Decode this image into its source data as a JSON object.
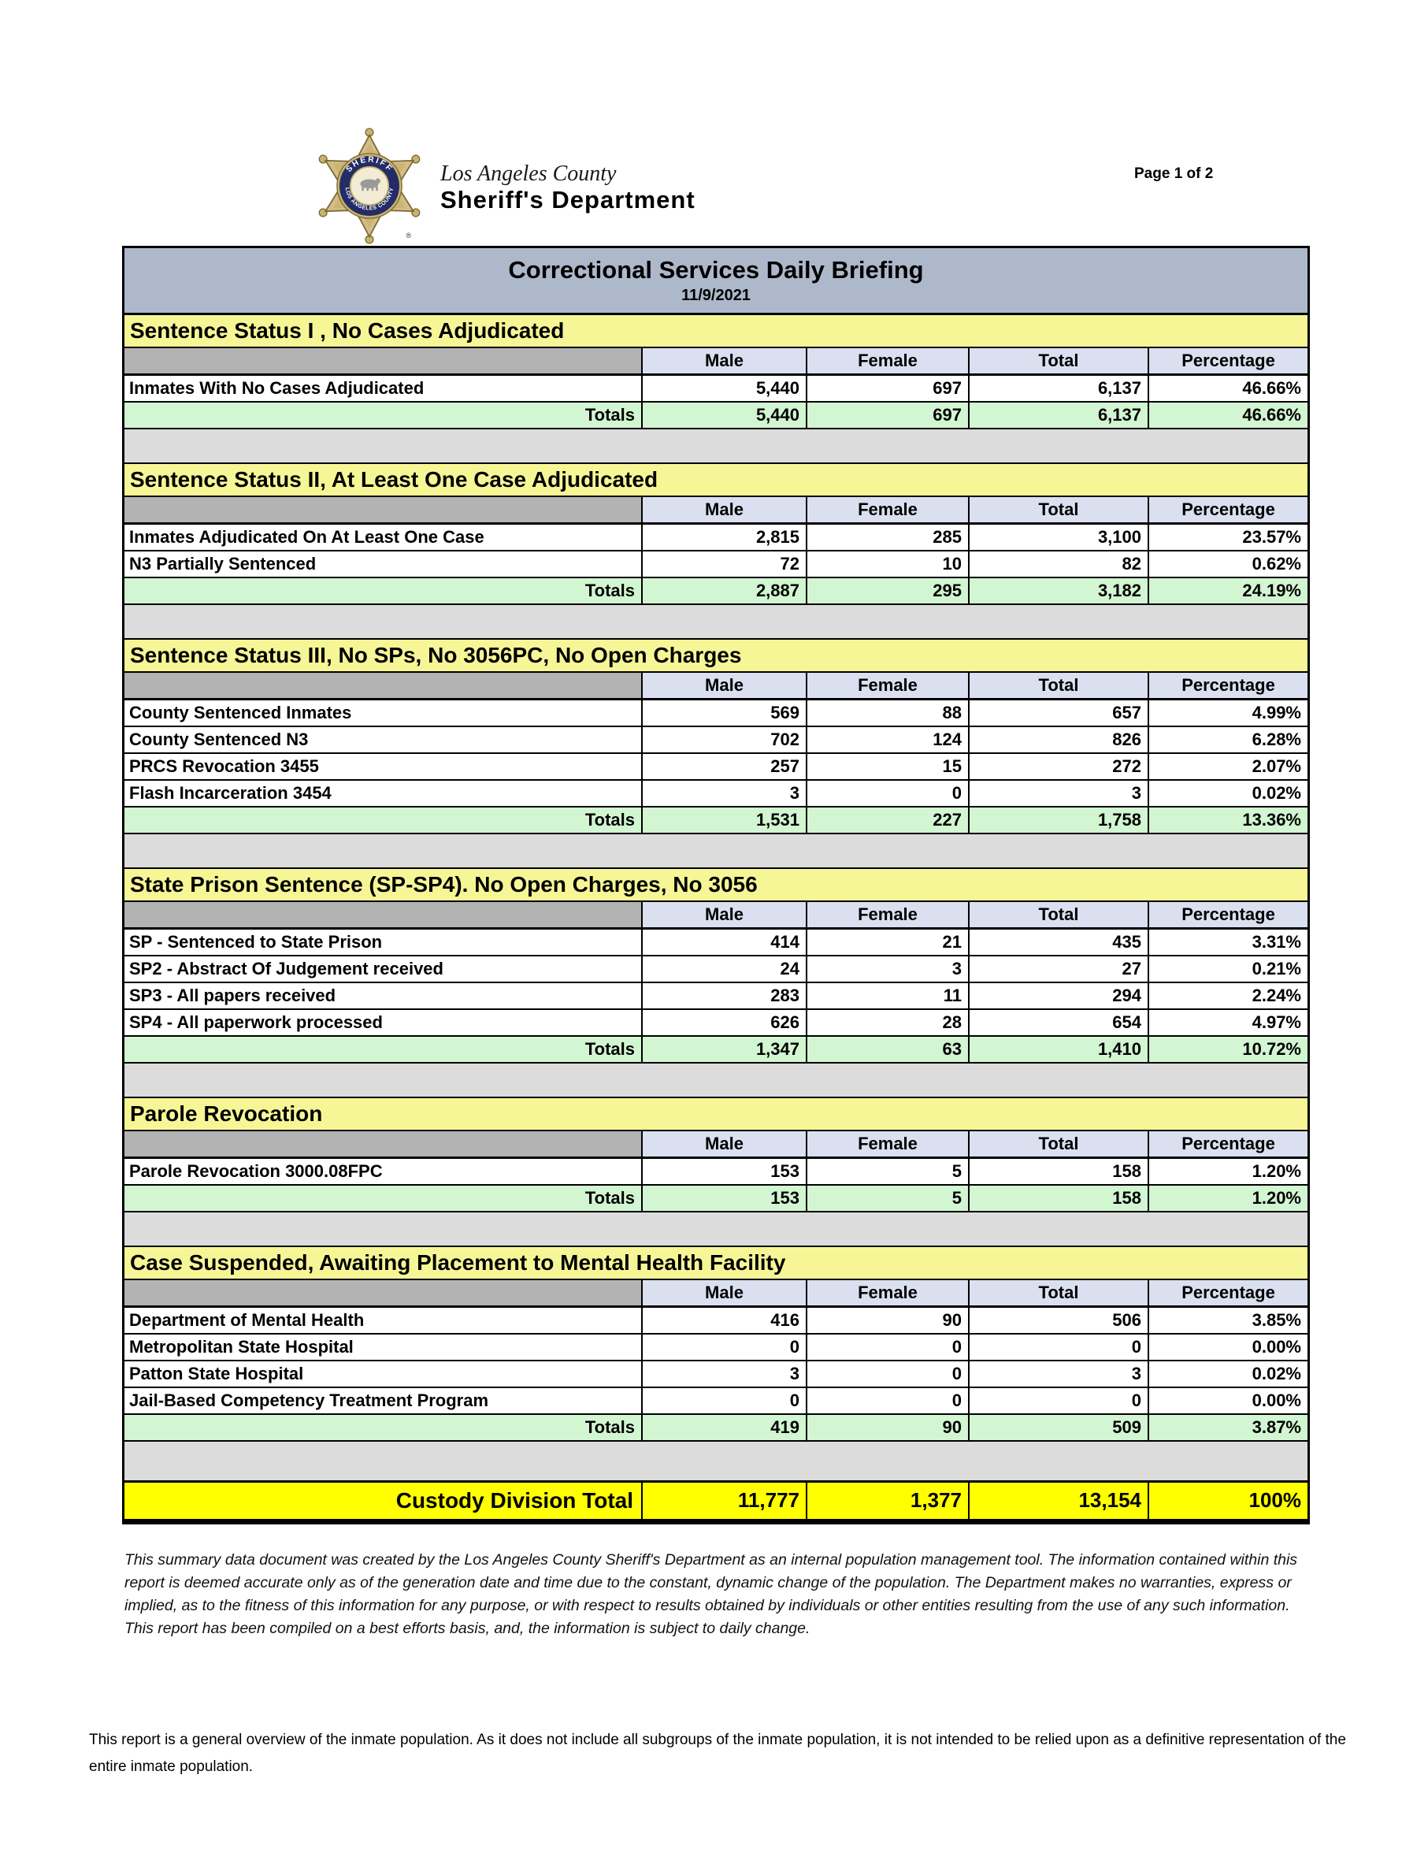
{
  "page": {
    "page_indicator": "Page 1 of 2",
    "logo": {
      "agency_line1": "Los Angeles County",
      "agency_line2": "Sheriff's Department",
      "badge_top_text": "SHERIFF",
      "badge_bottom_text": "LOS ANGELES COUNTY",
      "registered_mark": "®"
    }
  },
  "report": {
    "title": "Correctional Services Daily Briefing",
    "date": "11/9/2021"
  },
  "table": {
    "columns": [
      "Male",
      "Female",
      "Total",
      "Percentage"
    ],
    "totals_label": "Totals",
    "sections": [
      {
        "header": "Sentence Status I , No Cases Adjudicated",
        "rows": [
          {
            "label": "Inmates With No Cases Adjudicated",
            "male": "5,440",
            "female": "697",
            "total": "6,137",
            "percentage": "46.66%"
          }
        ],
        "totals": {
          "male": "5,440",
          "female": "697",
          "total": "6,137",
          "percentage": "46.66%"
        }
      },
      {
        "header": "Sentence Status II, At Least One Case Adjudicated",
        "rows": [
          {
            "label": "Inmates Adjudicated On At Least One Case",
            "male": "2,815",
            "female": "285",
            "total": "3,100",
            "percentage": "23.57%"
          },
          {
            "label": "N3 Partially Sentenced",
            "male": "72",
            "female": "10",
            "total": "82",
            "percentage": "0.62%"
          }
        ],
        "totals": {
          "male": "2,887",
          "female": "295",
          "total": "3,182",
          "percentage": "24.19%"
        }
      },
      {
        "header": "Sentence Status III, No SPs, No 3056PC, No Open Charges",
        "rows": [
          {
            "label": "County Sentenced Inmates",
            "male": "569",
            "female": "88",
            "total": "657",
            "percentage": "4.99%"
          },
          {
            "label": "County Sentenced N3",
            "male": "702",
            "female": "124",
            "total": "826",
            "percentage": "6.28%"
          },
          {
            "label": "PRCS Revocation 3455",
            "male": "257",
            "female": "15",
            "total": "272",
            "percentage": "2.07%"
          },
          {
            "label": "Flash Incarceration 3454",
            "male": "3",
            "female": "0",
            "total": "3",
            "percentage": "0.02%"
          }
        ],
        "totals": {
          "male": "1,531",
          "female": "227",
          "total": "1,758",
          "percentage": "13.36%"
        }
      },
      {
        "header": "State Prison Sentence (SP-SP4). No Open Charges, No 3056",
        "rows": [
          {
            "label": "SP - Sentenced to State Prison",
            "male": "414",
            "female": "21",
            "total": "435",
            "percentage": "3.31%"
          },
          {
            "label": "SP2 - Abstract Of Judgement received",
            "male": "24",
            "female": "3",
            "total": "27",
            "percentage": "0.21%"
          },
          {
            "label": "SP3 - All papers received",
            "male": "283",
            "female": "11",
            "total": "294",
            "percentage": "2.24%"
          },
          {
            "label": "SP4 - All paperwork processed",
            "male": "626",
            "female": "28",
            "total": "654",
            "percentage": "4.97%"
          }
        ],
        "totals": {
          "male": "1,347",
          "female": "63",
          "total": "1,410",
          "percentage": "10.72%"
        }
      },
      {
        "header": "Parole Revocation",
        "rows": [
          {
            "label": "Parole Revocation 3000.08FPC",
            "male": "153",
            "female": "5",
            "total": "158",
            "percentage": "1.20%"
          }
        ],
        "totals": {
          "male": "153",
          "female": "5",
          "total": "158",
          "percentage": "1.20%"
        }
      },
      {
        "header": "Case Suspended, Awaiting Placement to Mental Health Facility",
        "rows": [
          {
            "label": "Department of Mental Health",
            "male": "416",
            "female": "90",
            "total": "506",
            "percentage": "3.85%"
          },
          {
            "label": "Metropolitan State Hospital",
            "male": "0",
            "female": "0",
            "total": "0",
            "percentage": "0.00%"
          },
          {
            "label": "Patton State Hospital",
            "male": "3",
            "female": "0",
            "total": "3",
            "percentage": "0.02%"
          },
          {
            "label": "Jail-Based Competency Treatment Program",
            "male": "0",
            "female": "0",
            "total": "0",
            "percentage": "0.00%"
          }
        ],
        "totals": {
          "male": "419",
          "female": "90",
          "total": "509",
          "percentage": "3.87%"
        }
      }
    ],
    "grand_total": {
      "label": "Custody Division Total",
      "male": "11,777",
      "female": "1,377",
      "total": "13,154",
      "percentage": "100%"
    }
  },
  "footer": {
    "disclaimer": "This summary data document was created by the Los Angeles County Sheriff's Department as an internal population management tool.  The information contained within this report is deemed accurate only as of the generation date and time due to the constant, dynamic change of the population.  The Department makes no warranties, express or implied, as to the fitness of this information for any purpose, or with respect to results obtained by individuals or other entities resulting from the use of any such information.  This report has been compiled on a best efforts basis, and, the information is subject to daily change.",
    "note": "This report is a general overview of the inmate population.  As it does not include all subgroups of the inmate population, it is not intended to be relied upon as a definitive representation of the entire inmate population."
  },
  "colors": {
    "title_bar": "#adb8ca",
    "section_header": "#f7f696",
    "column_header": "#dbe0f0",
    "column_header_blank": "#b3b3b3",
    "totals_row": "#d2f5d2",
    "spacer": "#dcdcdc",
    "grand_total": "#ffff00"
  }
}
